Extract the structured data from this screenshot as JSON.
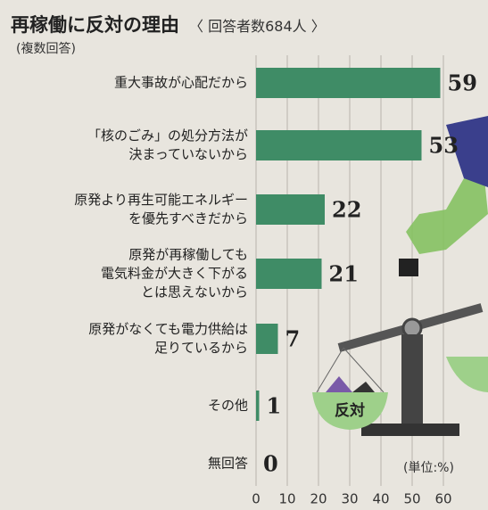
{
  "chart_data": {
    "type": "bar",
    "orientation": "horizontal",
    "title": "再稼働に反対の理由",
    "subtitle": "〈 回答者数684人 〉",
    "note": "(複数回答)",
    "unit_label": "(単位:%)",
    "illustration_label": "反対",
    "categories": [
      "重大事故が心配だから",
      "「核のごみ」の処分方法が\n決まっていないから",
      "原発より再生可能エネルギー\nを優先すべきだから",
      "原発が再稼働しても\n電気料金が大きく下がる\nとは思えないから",
      "原発がなくても電力供給は\n足りているから",
      "その他",
      "無回答"
    ],
    "values": [
      59,
      53,
      22,
      21,
      7,
      1,
      0
    ],
    "color": "#3f8c66",
    "xlim": [
      0,
      60
    ],
    "xticks": [
      0,
      10,
      20,
      30,
      40,
      50,
      60
    ],
    "grid": true
  }
}
